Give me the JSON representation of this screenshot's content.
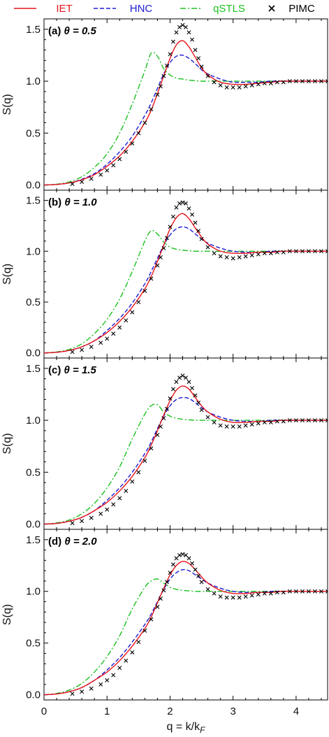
{
  "figure": {
    "xlabel_prefix": "q = k/k",
    "xlabel_sub": "F",
    "ylabel": "S(q)"
  },
  "colors": {
    "IET": "#e8141b",
    "HNC": "#1c1cd4",
    "qSTLS": "#19c21e",
    "PIMC": "#000000"
  },
  "legend": [
    {
      "name": "IET",
      "color": "#e8141b",
      "style": "solid"
    },
    {
      "name": "HNC",
      "color": "#1c1cd4",
      "style": "dashed"
    },
    {
      "name": "qSTLS",
      "color": "#19c21e",
      "style": "dashdot"
    },
    {
      "name": "PIMC",
      "color": "#000000",
      "style": "marker-x"
    }
  ],
  "chart_data": [
    {
      "type": "line",
      "panel": "(a)",
      "theta_label": "θ = 0.5",
      "xlim": [
        0,
        4.5
      ],
      "ylim": [
        -0.05,
        1.6
      ],
      "xticks": [
        0,
        1,
        2,
        3,
        4
      ],
      "yticks": [
        0.0,
        0.5,
        1.0,
        1.5
      ],
      "x": [
        0.0,
        0.2,
        0.4,
        0.6,
        0.8,
        1.0,
        1.2,
        1.4,
        1.6,
        1.7,
        1.8,
        1.9,
        2.0,
        2.1,
        2.2,
        2.3,
        2.4,
        2.5,
        2.6,
        2.8,
        3.0,
        3.2,
        3.4,
        3.6,
        3.8,
        4.0,
        4.2,
        4.5
      ],
      "series": [
        {
          "name": "IET",
          "values": [
            0.0,
            0.005,
            0.02,
            0.05,
            0.1,
            0.18,
            0.28,
            0.42,
            0.6,
            0.72,
            0.88,
            1.05,
            1.22,
            1.35,
            1.39,
            1.33,
            1.23,
            1.13,
            1.06,
            0.99,
            0.97,
            0.97,
            0.98,
            0.99,
            1.0,
            1.0,
            1.0,
            1.0
          ]
        },
        {
          "name": "HNC",
          "values": [
            0.0,
            0.005,
            0.02,
            0.055,
            0.11,
            0.2,
            0.32,
            0.47,
            0.67,
            0.79,
            0.93,
            1.07,
            1.18,
            1.24,
            1.25,
            1.22,
            1.17,
            1.11,
            1.07,
            1.02,
            0.99,
            0.99,
            0.99,
            1.0,
            1.0,
            1.0,
            1.0,
            1.0
          ]
        },
        {
          "name": "qSTLS",
          "values": [
            0.0,
            0.008,
            0.03,
            0.08,
            0.17,
            0.3,
            0.5,
            0.78,
            1.1,
            1.27,
            1.24,
            1.12,
            1.06,
            1.03,
            1.02,
            1.01,
            1.005,
            1.0,
            1.0,
            1.0,
            1.0,
            1.0,
            1.0,
            1.0,
            1.0,
            1.0,
            1.0,
            1.0
          ]
        }
      ],
      "points": {
        "name": "PIMC",
        "x": [
          0.45,
          0.6,
          0.75,
          0.9,
          1.0,
          1.1,
          1.2,
          1.3,
          1.4,
          1.5,
          1.6,
          1.7,
          1.8,
          1.85,
          1.9,
          1.95,
          2.0,
          2.05,
          2.1,
          2.15,
          2.2,
          2.25,
          2.3,
          2.35,
          2.4,
          2.45,
          2.5,
          2.6,
          2.7,
          2.8,
          2.9,
          3.0,
          3.1,
          3.2,
          3.3,
          3.4,
          3.5,
          3.6,
          3.7,
          3.8,
          3.9,
          4.0,
          4.1,
          4.2,
          4.3,
          4.4,
          4.5
        ],
        "y": [
          0.01,
          0.03,
          0.06,
          0.1,
          0.14,
          0.19,
          0.25,
          0.32,
          0.4,
          0.5,
          0.6,
          0.73,
          0.87,
          0.95,
          1.05,
          1.15,
          1.26,
          1.38,
          1.47,
          1.52,
          1.54,
          1.52,
          1.47,
          1.4,
          1.3,
          1.22,
          1.14,
          1.05,
          0.99,
          0.96,
          0.94,
          0.94,
          0.94,
          0.95,
          0.96,
          0.97,
          0.98,
          0.98,
          0.99,
          0.99,
          1.0,
          1.0,
          1.0,
          1.0,
          1.0,
          1.0,
          1.0
        ]
      }
    },
    {
      "type": "line",
      "panel": "(b)",
      "theta_label": "θ = 1.0",
      "xlim": [
        0,
        4.5
      ],
      "ylim": [
        -0.05,
        1.6
      ],
      "xticks": [
        0,
        1,
        2,
        3,
        4
      ],
      "yticks": [
        0.0,
        0.5,
        1.0,
        1.5
      ],
      "x": [
        0.0,
        0.2,
        0.4,
        0.6,
        0.8,
        1.0,
        1.2,
        1.4,
        1.6,
        1.7,
        1.8,
        1.9,
        2.0,
        2.1,
        2.2,
        2.3,
        2.4,
        2.5,
        2.6,
        2.8,
        3.0,
        3.2,
        3.4,
        3.6,
        3.8,
        4.0,
        4.2,
        4.5
      ],
      "series": [
        {
          "name": "IET",
          "values": [
            0.0,
            0.006,
            0.025,
            0.06,
            0.12,
            0.2,
            0.31,
            0.45,
            0.63,
            0.75,
            0.9,
            1.06,
            1.22,
            1.33,
            1.37,
            1.32,
            1.23,
            1.14,
            1.07,
            1.0,
            0.98,
            0.98,
            0.99,
            0.99,
            1.0,
            1.0,
            1.0,
            1.0
          ]
        },
        {
          "name": "HNC",
          "values": [
            0.0,
            0.006,
            0.025,
            0.06,
            0.12,
            0.22,
            0.34,
            0.49,
            0.68,
            0.8,
            0.93,
            1.06,
            1.16,
            1.22,
            1.24,
            1.22,
            1.17,
            1.12,
            1.08,
            1.03,
            1.0,
            0.99,
            0.99,
            1.0,
            1.0,
            1.0,
            1.0,
            1.0
          ]
        },
        {
          "name": "qSTLS",
          "values": [
            0.0,
            0.01,
            0.035,
            0.09,
            0.19,
            0.33,
            0.53,
            0.8,
            1.1,
            1.2,
            1.17,
            1.09,
            1.04,
            1.02,
            1.01,
            1.005,
            1.0,
            1.0,
            1.0,
            1.0,
            1.0,
            1.0,
            1.0,
            1.0,
            1.0,
            1.0,
            1.0,
            1.0
          ]
        }
      ],
      "points": {
        "name": "PIMC",
        "x": [
          0.45,
          0.6,
          0.75,
          0.9,
          1.0,
          1.1,
          1.2,
          1.3,
          1.4,
          1.5,
          1.6,
          1.7,
          1.8,
          1.85,
          1.9,
          1.95,
          2.0,
          2.05,
          2.1,
          2.15,
          2.2,
          2.25,
          2.3,
          2.35,
          2.4,
          2.45,
          2.5,
          2.6,
          2.7,
          2.8,
          2.9,
          3.0,
          3.1,
          3.2,
          3.3,
          3.4,
          3.5,
          3.6,
          3.7,
          3.8,
          3.9,
          4.0,
          4.1,
          4.2,
          4.3,
          4.4,
          4.5
        ],
        "y": [
          0.01,
          0.03,
          0.06,
          0.1,
          0.14,
          0.19,
          0.25,
          0.32,
          0.4,
          0.5,
          0.61,
          0.73,
          0.86,
          0.94,
          1.03,
          1.13,
          1.24,
          1.34,
          1.43,
          1.47,
          1.48,
          1.47,
          1.42,
          1.36,
          1.28,
          1.2,
          1.12,
          1.04,
          0.98,
          0.95,
          0.94,
          0.93,
          0.94,
          0.95,
          0.96,
          0.97,
          0.98,
          0.98,
          0.99,
          0.99,
          1.0,
          1.0,
          1.0,
          1.0,
          1.0,
          1.0,
          1.0
        ]
      }
    },
    {
      "type": "line",
      "panel": "(c)",
      "theta_label": "θ = 1.5",
      "xlim": [
        0,
        4.5
      ],
      "ylim": [
        -0.05,
        1.6
      ],
      "xticks": [
        0,
        1,
        2,
        3,
        4
      ],
      "yticks": [
        0.0,
        0.5,
        1.0,
        1.5
      ],
      "x": [
        0.0,
        0.2,
        0.4,
        0.6,
        0.8,
        1.0,
        1.2,
        1.4,
        1.6,
        1.7,
        1.8,
        1.9,
        2.0,
        2.1,
        2.2,
        2.3,
        2.4,
        2.5,
        2.6,
        2.8,
        3.0,
        3.2,
        3.4,
        3.6,
        3.8,
        4.0,
        4.2,
        4.5
      ],
      "series": [
        {
          "name": "IET",
          "values": [
            0.0,
            0.007,
            0.028,
            0.065,
            0.13,
            0.21,
            0.32,
            0.46,
            0.64,
            0.76,
            0.9,
            1.05,
            1.19,
            1.29,
            1.33,
            1.3,
            1.22,
            1.14,
            1.08,
            1.01,
            0.98,
            0.98,
            0.99,
            0.99,
            1.0,
            1.0,
            1.0,
            1.0
          ]
        },
        {
          "name": "HNC",
          "values": [
            0.0,
            0.007,
            0.028,
            0.065,
            0.13,
            0.23,
            0.35,
            0.5,
            0.68,
            0.79,
            0.92,
            1.04,
            1.14,
            1.2,
            1.22,
            1.21,
            1.17,
            1.12,
            1.08,
            1.03,
            1.0,
            0.99,
            0.99,
            1.0,
            1.0,
            1.0,
            1.0,
            1.0
          ]
        },
        {
          "name": "qSTLS",
          "values": [
            0.0,
            0.012,
            0.04,
            0.1,
            0.2,
            0.35,
            0.55,
            0.82,
            1.06,
            1.14,
            1.15,
            1.08,
            1.04,
            1.02,
            1.01,
            1.005,
            1.0,
            1.0,
            1.0,
            1.0,
            1.0,
            1.0,
            1.0,
            1.0,
            1.0,
            1.0,
            1.0,
            1.0
          ]
        }
      ],
      "points": {
        "name": "PIMC",
        "x": [
          0.45,
          0.6,
          0.75,
          0.9,
          1.0,
          1.1,
          1.2,
          1.3,
          1.4,
          1.5,
          1.6,
          1.7,
          1.8,
          1.85,
          1.9,
          1.95,
          2.0,
          2.05,
          2.1,
          2.15,
          2.2,
          2.25,
          2.3,
          2.35,
          2.4,
          2.45,
          2.5,
          2.6,
          2.7,
          2.8,
          2.9,
          3.0,
          3.1,
          3.2,
          3.3,
          3.4,
          3.5,
          3.6,
          3.7,
          3.8,
          3.9,
          4.0,
          4.1,
          4.2,
          4.3,
          4.4,
          4.5
        ],
        "y": [
          0.01,
          0.03,
          0.06,
          0.1,
          0.14,
          0.19,
          0.25,
          0.32,
          0.41,
          0.5,
          0.61,
          0.73,
          0.86,
          0.94,
          1.02,
          1.11,
          1.21,
          1.3,
          1.37,
          1.41,
          1.43,
          1.41,
          1.37,
          1.31,
          1.24,
          1.17,
          1.1,
          1.03,
          0.98,
          0.95,
          0.94,
          0.94,
          0.94,
          0.95,
          0.96,
          0.97,
          0.98,
          0.98,
          0.99,
          0.99,
          1.0,
          1.0,
          1.0,
          1.0,
          1.0,
          1.0,
          1.0
        ]
      }
    },
    {
      "type": "line",
      "panel": "(d)",
      "theta_label": "θ = 2.0",
      "xlim": [
        0,
        4.5
      ],
      "ylim": [
        -0.05,
        1.6
      ],
      "xticks": [
        0,
        1,
        2,
        3,
        4
      ],
      "yticks": [
        0.0,
        0.5,
        1.0,
        1.5
      ],
      "x": [
        0.0,
        0.2,
        0.4,
        0.6,
        0.8,
        1.0,
        1.2,
        1.4,
        1.6,
        1.7,
        1.8,
        1.9,
        2.0,
        2.1,
        2.2,
        2.3,
        2.4,
        2.5,
        2.6,
        2.8,
        3.0,
        3.2,
        3.4,
        3.6,
        3.8,
        4.0,
        4.2,
        4.5
      ],
      "series": [
        {
          "name": "IET",
          "values": [
            0.0,
            0.008,
            0.03,
            0.07,
            0.14,
            0.22,
            0.33,
            0.47,
            0.64,
            0.75,
            0.89,
            1.03,
            1.16,
            1.25,
            1.29,
            1.27,
            1.21,
            1.14,
            1.08,
            1.01,
            0.98,
            0.98,
            0.99,
            0.99,
            1.0,
            1.0,
            1.0,
            1.0
          ]
        },
        {
          "name": "HNC",
          "values": [
            0.0,
            0.008,
            0.03,
            0.07,
            0.14,
            0.24,
            0.36,
            0.51,
            0.68,
            0.78,
            0.9,
            1.02,
            1.12,
            1.18,
            1.21,
            1.2,
            1.16,
            1.12,
            1.08,
            1.03,
            1.0,
            0.99,
            0.99,
            1.0,
            1.0,
            1.0,
            1.0,
            1.0
          ]
        },
        {
          "name": "qSTLS",
          "values": [
            0.0,
            0.013,
            0.045,
            0.11,
            0.22,
            0.37,
            0.57,
            0.83,
            1.04,
            1.1,
            1.12,
            1.08,
            1.04,
            1.02,
            1.01,
            1.005,
            1.0,
            1.0,
            1.0,
            1.0,
            1.0,
            1.0,
            1.0,
            1.0,
            1.0,
            1.0,
            1.0,
            1.0
          ]
        }
      ],
      "points": {
        "name": "PIMC",
        "x": [
          0.45,
          0.6,
          0.75,
          0.9,
          1.0,
          1.1,
          1.2,
          1.3,
          1.4,
          1.5,
          1.6,
          1.7,
          1.8,
          1.85,
          1.9,
          1.95,
          2.0,
          2.05,
          2.1,
          2.15,
          2.2,
          2.25,
          2.3,
          2.35,
          2.4,
          2.45,
          2.5,
          2.6,
          2.7,
          2.8,
          2.9,
          3.0,
          3.1,
          3.2,
          3.3,
          3.4,
          3.5,
          3.6,
          3.7,
          3.8,
          3.9,
          4.0,
          4.1,
          4.2,
          4.3,
          4.4,
          4.5
        ],
        "y": [
          0.01,
          0.03,
          0.06,
          0.1,
          0.14,
          0.19,
          0.26,
          0.33,
          0.41,
          0.51,
          0.62,
          0.73,
          0.85,
          0.93,
          1.01,
          1.09,
          1.18,
          1.26,
          1.32,
          1.35,
          1.36,
          1.35,
          1.32,
          1.27,
          1.21,
          1.15,
          1.09,
          1.02,
          0.98,
          0.95,
          0.94,
          0.94,
          0.94,
          0.95,
          0.96,
          0.97,
          0.98,
          0.98,
          0.99,
          0.99,
          1.0,
          1.0,
          1.0,
          1.0,
          1.0,
          1.0,
          1.0
        ]
      }
    }
  ]
}
